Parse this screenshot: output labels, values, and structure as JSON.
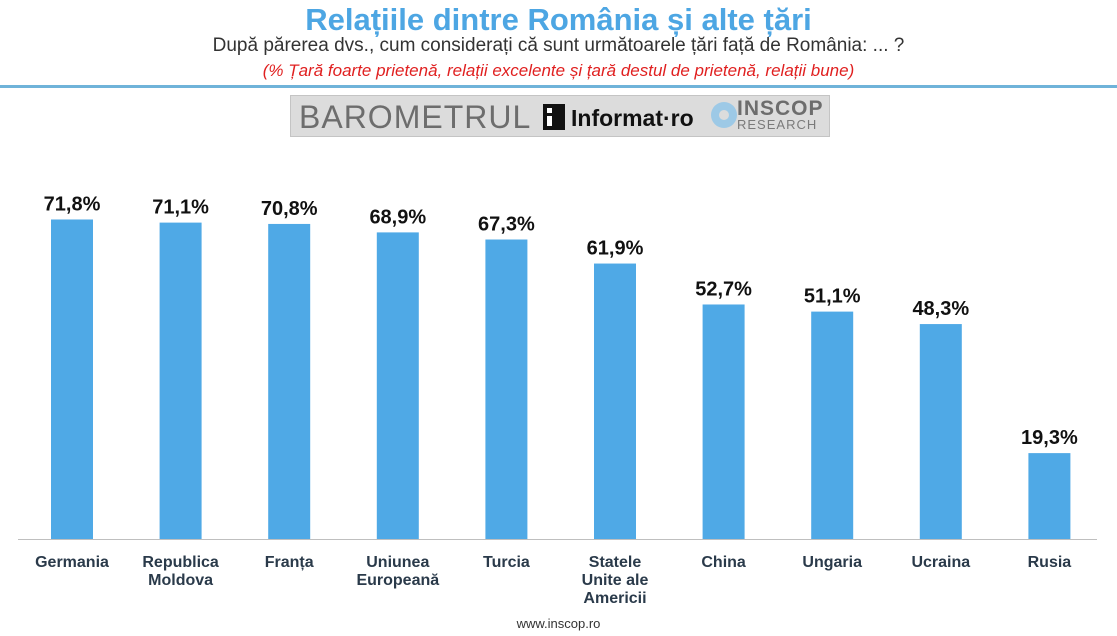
{
  "header": {
    "title": "Relațiile dintre România și alte țări",
    "subtitle": "După părerea dvs., cum considerați că sunt următoarele țări față de România: ... ?",
    "note": "(% Țară foarte prietenă, relații excelente și țară destul de prietenă, relații bune)"
  },
  "banner": {
    "barometrul": "BAROMETRUL",
    "informat": "Informat·ro",
    "inscop": "INSCOP",
    "research": "RESEARCH"
  },
  "footer": {
    "url": "www.inscop.ro"
  },
  "colors": {
    "bar": "#4fa9e6",
    "title": "#4da6e3",
    "note": "#e02020"
  },
  "chart_data": {
    "type": "bar",
    "categories": [
      [
        "Germania"
      ],
      [
        "Republica",
        "Moldova"
      ],
      [
        "Franța"
      ],
      [
        "Uniunea",
        "Europeană"
      ],
      [
        "Turcia"
      ],
      [
        "Statele",
        "Unite ale",
        "Americii"
      ],
      [
        "China"
      ],
      [
        "Ungaria"
      ],
      [
        "Ucraina"
      ],
      [
        "Rusia"
      ]
    ],
    "values": [
      71.8,
      71.1,
      70.8,
      68.9,
      67.3,
      61.9,
      52.7,
      51.1,
      48.3,
      19.3
    ],
    "value_labels": [
      "71,8%",
      "71,1%",
      "70,8%",
      "68,9%",
      "67,3%",
      "61,9%",
      "52,7%",
      "51,1%",
      "48,3%",
      "19,3%"
    ],
    "ylim": [
      0,
      100
    ],
    "grid": false,
    "legend": "none"
  }
}
